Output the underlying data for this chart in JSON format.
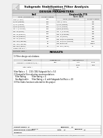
{
  "title_line1": "Subgrade Stabilization Filter Analysis",
  "title_line2": "*** Report ***",
  "section1_title": "DESIGN PARAMETERS",
  "section2_title": "RESULTS",
  "soil_label": "Soil",
  "geotextile_label": "Geotextile P/S",
  "geo_sublabel": "None (AOS)",
  "soil_col_headers": [
    "Sieve / Opening Size",
    "Percent Passing"
  ],
  "geo_col_headers": [
    "Sieve / Opening Size",
    "Percent Passing"
  ],
  "soil_rows": [
    [
      "Liner (1 inch)",
      "100"
    ],
    [
      "3/4 in (19mm)",
      "100"
    ],
    [
      "1/2 in (13mm)",
      "100"
    ],
    [
      "3/8 in (9.5mm)",
      "100"
    ],
    [
      "No. 4 (4.75mm)",
      "100"
    ],
    [
      "No. 10 (2mm)",
      "100"
    ],
    [
      "No. 20 (850um)",
      "100"
    ],
    [
      "No. 40 (425um)",
      "100"
    ],
    [
      "No. 60 (250um)",
      "100"
    ],
    [
      "No. 100 (150um)",
      "97"
    ],
    [
      "No. 140 (106um)",
      "90"
    ],
    [
      "No. 200 (75um)",
      "77"
    ],
    [
      "Coefficient of U =",
      ""
    ],
    [
      "Plasticity Index =",
      ""
    ]
  ],
  "geo_rows": [
    [
      "Liner (1 inch)",
      "100"
    ],
    [
      "3/4 in (19mm)",
      "100"
    ],
    [
      "1/2 in (13mm)",
      "100"
    ],
    [
      "3/8 in (9.5mm)",
      "100"
    ],
    [
      "No. 4 (4.75mm)",
      "100"
    ],
    [
      "No. 4 (4.75mm)",
      "100"
    ],
    [
      "No. 10 (2mm)",
      "100"
    ],
    [
      "No. 10 to 40 (Woven)",
      "100"
    ],
    [
      "No. 40 to 80 (Woven)",
      "1000"
    ],
    [
      "No. 80 to 200",
      "10000"
    ],
    [
      "No. 200 (75um)",
      "77"
    ]
  ],
  "results_note1": "1) Filter design calculations:",
  "results_col_headers": [
    "Soil Type",
    "Subgrade Soil",
    "Geotextile P/S"
  ],
  "res_rows": [
    [
      "Uniformity Coefficient (Cu) =",
      "Fine",
      "0.44",
      "1.000"
    ],
    [
      "",
      "",
      "0.130",
      "0.18"
    ],
    [
      "Filter Ratio =",
      "",
      "5.0",
      ""
    ]
  ],
  "filter_ratio_line": "Filter Ratio =  1    D15 / D85 Subgrade Soil = 5.0",
  "note2": "2) Geotextile filter selection recommendations:",
  "filter_rating_label": "Filter Rating:",
  "filter_rating_val": "Filter Rating = 4",
  "geo_applicable_label": "Geo Applicable:",
  "geo_applicable_val": "Filter Rating = 4  with Subgrade Soil Ratio = 20",
  "note3": "3) Filter fabric has been selected for this project",
  "project_name_label": "Project Name:",
  "project_name_val": "N/A",
  "engineer_label": "Engineer:",
  "engineer_val": "N/A",
  "company_label": "Engineering Company:",
  "company_val": "Geosock",
  "date_label": "Date:",
  "date_val": "N/A",
  "checked_label": "Checked:",
  "checked_val": "N/A",
  "designer_label": "Designer:",
  "designer_val": "",
  "footer_text": "You may print this PDF for application reference or for transmittal to REPORT users.  http://www.geosock.com",
  "bg_color": "#f0f0f0",
  "page_bg": "#ffffff",
  "section_bg": "#c8c8c8",
  "header_bg": "#e0e0e0",
  "alt_row": "#f5f5f5"
}
